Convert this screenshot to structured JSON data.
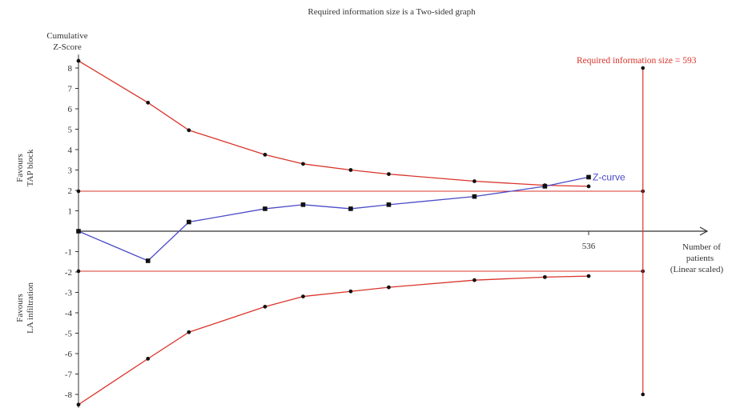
{
  "chart_data": {
    "type": "line",
    "title": "Required information size is a Two-sided graph",
    "ylabel_line1": "Cumulative",
    "ylabel_line2": "Z-Score",
    "xlabel_line1": "Number of",
    "xlabel_line2": "patients",
    "xlabel_line3": "(Linear scaled)",
    "favours_top_line1": "Favours",
    "favours_top_line2": "TAP block",
    "favours_bottom_line1": "Favours",
    "favours_bottom_line2": "LA infiltration",
    "ris_label": "Required information size = 593",
    "ris_value": 593,
    "x_tick_value": 536,
    "x_tick_label": "536",
    "ylim": [
      -8.5,
      8.5
    ],
    "y_ticks": [
      8,
      7,
      6,
      5,
      4,
      3,
      2,
      1,
      -1,
      -2,
      -3,
      -4,
      -5,
      -6,
      -7,
      -8
    ],
    "x_start": 0,
    "conventional_boundary": 1.96,
    "colors": {
      "boundary": "#d9342b",
      "zcurve": "#4b4bc8",
      "axis": "#333333"
    },
    "series": [
      {
        "name": "Z-curve",
        "color": "#4b4bc8",
        "x": [
          0,
          73,
          116,
          196,
          236,
          286,
          326,
          416,
          490,
          536
        ],
        "y": [
          0,
          -1.45,
          0.45,
          1.1,
          1.3,
          1.1,
          1.3,
          1.7,
          2.2,
          2.65
        ]
      },
      {
        "color": "#d9342b",
        "x": [
          0,
          73,
          116,
          196,
          236,
          286,
          326,
          416,
          490,
          536
        ],
        "y": [
          8.35,
          6.3,
          4.95,
          3.75,
          3.3,
          3.0,
          2.8,
          2.45,
          2.25,
          2.2
        ]
      },
      {
        "color": "#d9342b",
        "x": [
          0,
          73,
          116,
          196,
          236,
          286,
          326,
          416,
          490,
          536
        ],
        "y": [
          -8.5,
          -6.25,
          -4.95,
          -3.7,
          -3.2,
          -2.95,
          -2.75,
          -2.4,
          -2.25,
          -2.2
        ]
      }
    ]
  }
}
